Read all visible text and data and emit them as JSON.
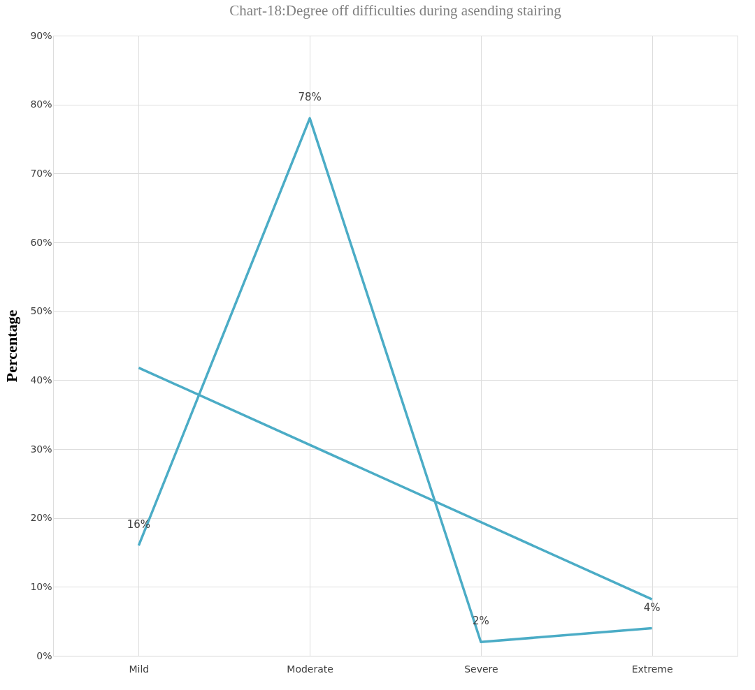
{
  "chart_data": {
    "type": "line",
    "title": "Chart-18:Degree off difficulties during asending stairing",
    "ylabel": "Percentage",
    "categories": [
      "Mild",
      "Moderate",
      "Severe",
      "Extreme"
    ],
    "series": [
      {
        "color": "#4bacc6",
        "values": [
          16,
          78,
          2,
          4
        ],
        "value_labels": [
          "16%",
          "78%",
          "2%",
          "4%"
        ]
      },
      {
        "type": "line",
        "color": "#4bacc6",
        "x": [
          "Mild",
          "Extreme"
        ],
        "values": [
          41.8,
          8.2
        ]
      }
    ],
    "ylim": [
      0,
      90
    ],
    "yticks": [
      {
        "value": 0,
        "label": "0%"
      },
      {
        "value": 10,
        "label": "10%"
      },
      {
        "value": 20,
        "label": "20%"
      },
      {
        "value": 30,
        "label": "30%"
      },
      {
        "value": 40,
        "label": "40%"
      },
      {
        "value": 50,
        "label": "50%"
      },
      {
        "value": 60,
        "label": "60%"
      },
      {
        "value": 70,
        "label": "70%"
      },
      {
        "value": 80,
        "label": "80%"
      },
      {
        "value": 90,
        "label": "90%"
      }
    ],
    "grid": true,
    "marker": "none",
    "line_style": "solid"
  }
}
